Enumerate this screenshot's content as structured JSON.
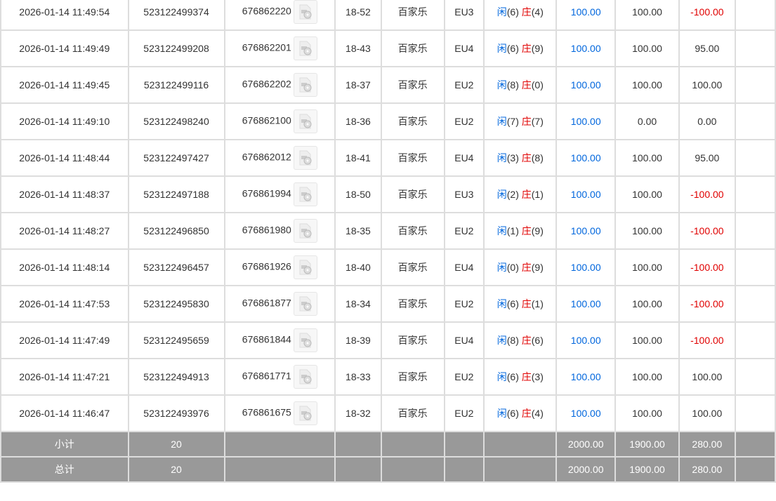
{
  "rows": [
    {
      "time": "2026-01-14 11:49:54",
      "bet_id": "523122499374",
      "round": "676862220",
      "table": "18-52",
      "game": "百家乐",
      "server": "EU3",
      "player_label": "闲",
      "player": "(6)",
      "banker_label": "庄",
      "banker": "(4)",
      "bet": "100.00",
      "valid": "100.00",
      "win": "-100.00"
    },
    {
      "time": "2026-01-14 11:49:49",
      "bet_id": "523122499208",
      "round": "676862201",
      "table": "18-43",
      "game": "百家乐",
      "server": "EU4",
      "player_label": "闲",
      "player": "(6)",
      "banker_label": "庄",
      "banker": "(9)",
      "bet": "100.00",
      "valid": "100.00",
      "win": "95.00"
    },
    {
      "time": "2026-01-14 11:49:45",
      "bet_id": "523122499116",
      "round": "676862202",
      "table": "18-37",
      "game": "百家乐",
      "server": "EU2",
      "player_label": "闲",
      "player": "(8)",
      "banker_label": "庄",
      "banker": "(0)",
      "bet": "100.00",
      "valid": "100.00",
      "win": "100.00"
    },
    {
      "time": "2026-01-14 11:49:10",
      "bet_id": "523122498240",
      "round": "676862100",
      "table": "18-36",
      "game": "百家乐",
      "server": "EU2",
      "player_label": "闲",
      "player": "(7)",
      "banker_label": "庄",
      "banker": "(7)",
      "bet": "100.00",
      "valid": "0.00",
      "win": "0.00"
    },
    {
      "time": "2026-01-14 11:48:44",
      "bet_id": "523122497427",
      "round": "676862012",
      "table": "18-41",
      "game": "百家乐",
      "server": "EU4",
      "player_label": "闲",
      "player": "(3)",
      "banker_label": "庄",
      "banker": "(8)",
      "bet": "100.00",
      "valid": "100.00",
      "win": "95.00"
    },
    {
      "time": "2026-01-14 11:48:37",
      "bet_id": "523122497188",
      "round": "676861994",
      "table": "18-50",
      "game": "百家乐",
      "server": "EU3",
      "player_label": "闲",
      "player": "(2)",
      "banker_label": "庄",
      "banker": "(1)",
      "bet": "100.00",
      "valid": "100.00",
      "win": "-100.00"
    },
    {
      "time": "2026-01-14 11:48:27",
      "bet_id": "523122496850",
      "round": "676861980",
      "table": "18-35",
      "game": "百家乐",
      "server": "EU2",
      "player_label": "闲",
      "player": "(1)",
      "banker_label": "庄",
      "banker": "(9)",
      "bet": "100.00",
      "valid": "100.00",
      "win": "-100.00"
    },
    {
      "time": "2026-01-14 11:48:14",
      "bet_id": "523122496457",
      "round": "676861926",
      "table": "18-40",
      "game": "百家乐",
      "server": "EU4",
      "player_label": "闲",
      "player": "(0)",
      "banker_label": "庄",
      "banker": "(9)",
      "bet": "100.00",
      "valid": "100.00",
      "win": "-100.00"
    },
    {
      "time": "2026-01-14 11:47:53",
      "bet_id": "523122495830",
      "round": "676861877",
      "table": "18-34",
      "game": "百家乐",
      "server": "EU2",
      "player_label": "闲",
      "player": "(6)",
      "banker_label": "庄",
      "banker": "(1)",
      "bet": "100.00",
      "valid": "100.00",
      "win": "-100.00"
    },
    {
      "time": "2026-01-14 11:47:49",
      "bet_id": "523122495659",
      "round": "676861844",
      "table": "18-39",
      "game": "百家乐",
      "server": "EU4",
      "player_label": "闲",
      "player": "(8)",
      "banker_label": "庄",
      "banker": "(6)",
      "bet": "100.00",
      "valid": "100.00",
      "win": "-100.00"
    },
    {
      "time": "2026-01-14 11:47:21",
      "bet_id": "523122494913",
      "round": "676861771",
      "table": "18-33",
      "game": "百家乐",
      "server": "EU2",
      "player_label": "闲",
      "player": "(6)",
      "banker_label": "庄",
      "banker": "(3)",
      "bet": "100.00",
      "valid": "100.00",
      "win": "100.00"
    },
    {
      "time": "2026-01-14 11:46:47",
      "bet_id": "523122493976",
      "round": "676861675",
      "table": "18-32",
      "game": "百家乐",
      "server": "EU2",
      "player_label": "闲",
      "player": "(6)",
      "banker_label": "庄",
      "banker": "(4)",
      "bet": "100.00",
      "valid": "100.00",
      "win": "100.00"
    }
  ],
  "footer": [
    {
      "label": "小计",
      "count": "20",
      "bet": "2000.00",
      "valid": "1900.00",
      "win": "280.00"
    },
    {
      "label": "总计",
      "count": "20",
      "bet": "2000.00",
      "valid": "1900.00",
      "win": "280.00"
    }
  ],
  "colors": {
    "player": "#0066dd",
    "banker": "#e00000",
    "loss": "#e00000",
    "footer_bg": "#999999"
  },
  "icons": {
    "replay": "video-replay-icon"
  }
}
